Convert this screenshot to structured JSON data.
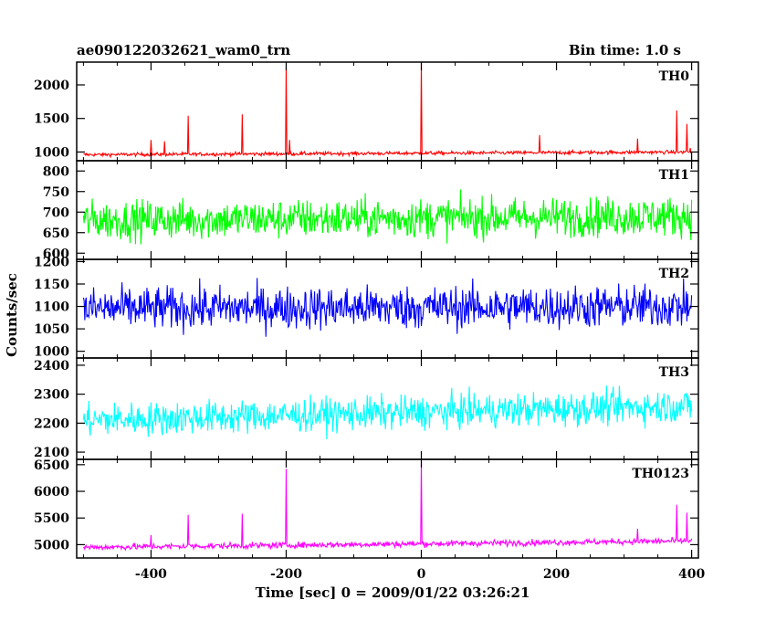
{
  "header": {
    "obs_label": "ae090122032621_wam0_trn",
    "bin_label": "Bin time: 1.0 s"
  },
  "axes": {
    "xlabel": "Time [sec] 0 = 2009/01/22 03:26:21",
    "ylabel": "Counts/sec"
  },
  "chart_data": {
    "type": "line",
    "xlim": [
      -510,
      410
    ],
    "x_ticks": [
      -400,
      -200,
      0,
      200,
      400
    ],
    "x_start": -500,
    "x_end": 400,
    "x_step": 1,
    "panels": [
      {
        "name": "TH0",
        "color": "#ff0000",
        "ylim": [
          870,
          2340
        ],
        "y_ticks": [
          1000,
          1500,
          2000
        ],
        "baseline": {
          "start": 960,
          "end": 1000,
          "noise": 22
        },
        "spikes": [
          {
            "x": -400,
            "y": 1180
          },
          {
            "x": -345,
            "y": 1540
          },
          {
            "x": -265,
            "y": 1560
          },
          {
            "x": -200,
            "y": 2300
          },
          {
            "x": -195,
            "y": 1180
          },
          {
            "x": 0,
            "y": 2320
          },
          {
            "x": -380,
            "y": 1160
          },
          {
            "x": 175,
            "y": 1250
          },
          {
            "x": 320,
            "y": 1200
          },
          {
            "x": 378,
            "y": 1620
          },
          {
            "x": 393,
            "y": 1420
          },
          {
            "x": 398,
            "y": 1060
          }
        ]
      },
      {
        "name": "TH1",
        "color": "#00ff00",
        "ylim": [
          585,
          825
        ],
        "y_ticks": [
          600,
          650,
          700,
          750,
          800
        ],
        "baseline": {
          "start": 680,
          "end": 690,
          "noise": 40
        },
        "spikes": []
      },
      {
        "name": "TH2",
        "color": "#0000ff",
        "ylim": [
          985,
          1205
        ],
        "y_ticks": [
          1000,
          1050,
          1100,
          1150,
          1200
        ],
        "baseline": {
          "start": 1095,
          "end": 1100,
          "noise": 40
        },
        "spikes": []
      },
      {
        "name": "TH3",
        "color": "#00ffff",
        "ylim": [
          2075,
          2425
        ],
        "y_ticks": [
          2100,
          2200,
          2300,
          2400
        ],
        "baseline": {
          "start": 2210,
          "end": 2260,
          "noise": 48
        },
        "spikes": []
      },
      {
        "name": "TH0123",
        "color": "#ff00ff",
        "ylim": [
          4750,
          6600
        ],
        "y_ticks": [
          5000,
          5500,
          6000,
          6500
        ],
        "baseline": {
          "start": 4950,
          "end": 5070,
          "noise": 48
        },
        "spikes": [
          {
            "x": -345,
            "y": 5560
          },
          {
            "x": -265,
            "y": 5580
          },
          {
            "x": -200,
            "y": 6420
          },
          {
            "x": 0,
            "y": 6560
          },
          {
            "x": 378,
            "y": 5750
          },
          {
            "x": 393,
            "y": 5600
          },
          {
            "x": -400,
            "y": 5180
          },
          {
            "x": 320,
            "y": 5300
          }
        ]
      }
    ]
  }
}
